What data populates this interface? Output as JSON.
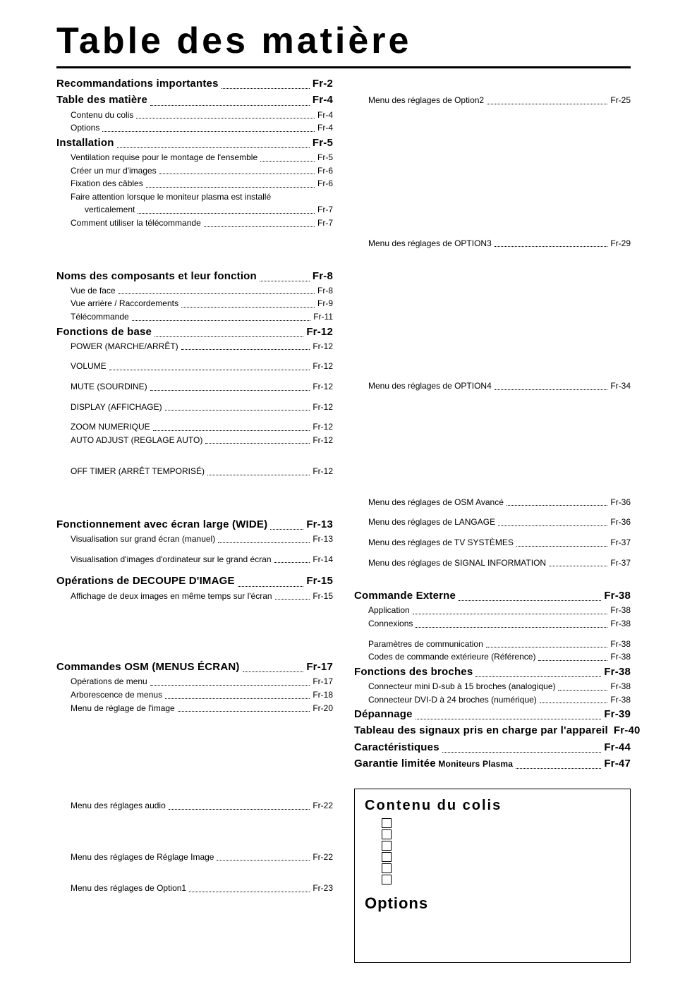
{
  "title": "Table des matière",
  "left": [
    {
      "t": "heading",
      "text": "Recommandations importantes",
      "page": "Fr-2"
    },
    {
      "t": "heading",
      "text": "Table des matière",
      "page": "Fr-4"
    },
    {
      "t": "sub",
      "indent": 1,
      "text": "Contenu du colis",
      "page": "Fr-4"
    },
    {
      "t": "sub",
      "indent": 1,
      "text": "Options",
      "page": "Fr-4"
    },
    {
      "t": "heading",
      "text": "Installation",
      "page": "Fr-5"
    },
    {
      "t": "sub",
      "indent": 1,
      "text": "Ventilation requise pour le montage de l'ensemble",
      "page": "Fr-5"
    },
    {
      "t": "sub",
      "indent": 1,
      "text": "Créer un mur d'images",
      "page": "Fr-6"
    },
    {
      "t": "sub",
      "indent": 1,
      "text": "Fixation des câbles",
      "page": "Fr-6"
    },
    {
      "t": "sub",
      "indent": 1,
      "text": "Faire attention lorsque le moniteur plasma est installé",
      "page": "",
      "wrap": true
    },
    {
      "t": "sub",
      "indent": 2,
      "text": "verticalement",
      "page": "Fr-7"
    },
    {
      "t": "sub",
      "indent": 1,
      "text": "Comment utiliser la télécommande",
      "page": "Fr-7"
    },
    {
      "t": "spacer",
      "size": "lg"
    },
    {
      "t": "heading",
      "text": "Noms des composants et leur fonction",
      "page": "Fr-8"
    },
    {
      "t": "sub",
      "indent": 1,
      "text": "Vue de face",
      "page": "Fr-8"
    },
    {
      "t": "sub",
      "indent": 1,
      "text": "Vue arrière / Raccordements",
      "page": "Fr-9"
    },
    {
      "t": "sub",
      "indent": 1,
      "text": "Télécommande",
      "page": "Fr-11"
    },
    {
      "t": "heading",
      "text": "Fonctions de base",
      "page": "Fr-12"
    },
    {
      "t": "sub",
      "indent": 1,
      "text": "POWER (MARCHE/ARRÊT)",
      "page": "Fr-12"
    },
    {
      "t": "spacer",
      "size": "sm"
    },
    {
      "t": "sub",
      "indent": 1,
      "text": "VOLUME",
      "page": "Fr-12"
    },
    {
      "t": "spacer",
      "size": "sm"
    },
    {
      "t": "sub",
      "indent": 1,
      "text": "MUTE (SOURDINE)",
      "page": "Fr-12"
    },
    {
      "t": "spacer",
      "size": "sm"
    },
    {
      "t": "sub",
      "indent": 1,
      "text": "DISPLAY (AFFICHAGE)",
      "page": "Fr-12"
    },
    {
      "t": "spacer",
      "size": "sm"
    },
    {
      "t": "sub",
      "indent": 1,
      "text": "ZOOM NUMERIQUE",
      "page": "Fr-12"
    },
    {
      "t": "sub",
      "indent": 1,
      "text": "AUTO ADJUST (REGLAGE AUTO)",
      "page": "Fr-12"
    },
    {
      "t": "spacer",
      "size": "md"
    },
    {
      "t": "sub",
      "indent": 1,
      "text": "OFF TIMER (ARRÊT TEMPORISÉ)",
      "page": "Fr-12"
    },
    {
      "t": "spacer",
      "size": "lg"
    },
    {
      "t": "heading",
      "text": "Fonctionnement avec écran large (WIDE)",
      "page": "Fr-13"
    },
    {
      "t": "sub",
      "indent": 1,
      "text": "Visualisation sur grand écran (manuel)",
      "page": "Fr-13"
    },
    {
      "t": "spacer",
      "size": "sm"
    },
    {
      "t": "sub",
      "indent": 1,
      "text": "Visualisation d'images d'ordinateur sur le grand écran",
      "page": "Fr-14"
    },
    {
      "t": "spacer",
      "size": "sm"
    },
    {
      "t": "heading",
      "text": "Opérations de DECOUPE D'IMAGE",
      "page": "Fr-15"
    },
    {
      "t": "sub",
      "indent": 1,
      "text": "Affichage de deux images en même temps sur l'écran",
      "page": "Fr-15"
    },
    {
      "t": "spacer",
      "size": "lg"
    },
    {
      "t": "spacer",
      "size": "md"
    },
    {
      "t": "heading",
      "text": "Commandes OSM (MENUS ÉCRAN)",
      "page": "Fr-17"
    },
    {
      "t": "sub",
      "indent": 1,
      "text": "Opérations de menu",
      "page": "Fr-17"
    },
    {
      "t": "sub",
      "indent": 1,
      "text": "Arborescence de menus",
      "page": "Fr-18"
    },
    {
      "t": "sub",
      "indent": 1,
      "text": "Menu de réglage de l'image",
      "page": "Fr-20"
    },
    {
      "t": "spacer",
      "size": "xl"
    },
    {
      "t": "sub",
      "indent": 1,
      "text": "Menu des réglages audio",
      "page": "Fr-22"
    },
    {
      "t": "spacer",
      "size": "lg"
    },
    {
      "t": "sub",
      "indent": 1,
      "text": "Menu des réglages de Réglage Image",
      "page": "Fr-22"
    },
    {
      "t": "spacer",
      "size": "md"
    },
    {
      "t": "sub",
      "indent": 1,
      "text": "Menu des réglages de Option1",
      "page": "Fr-23"
    }
  ],
  "right": [
    {
      "t": "spacer",
      "size": "md"
    },
    {
      "t": "sub",
      "indent": 1,
      "text": "Menu des réglages de Option2",
      "page": "Fr-25"
    },
    {
      "t": "spacer",
      "size": "xl"
    },
    {
      "t": "spacer",
      "size": "lg"
    },
    {
      "t": "spacer",
      "size": "sm"
    },
    {
      "t": "sub",
      "indent": 1,
      "text": "Menu des réglages de OPTION3",
      "page": "Fr-29"
    },
    {
      "t": "spacer",
      "size": "xl"
    },
    {
      "t": "spacer",
      "size": "lg"
    },
    {
      "t": "spacer",
      "size": "sm"
    },
    {
      "t": "sub",
      "indent": 1,
      "text": "Menu des réglages de OPTION4",
      "page": "Fr-34"
    },
    {
      "t": "spacer",
      "size": "xl"
    },
    {
      "t": "spacer",
      "size": "md"
    },
    {
      "t": "sub",
      "indent": 1,
      "text": "Menu des réglages de OSM Avancé",
      "page": "Fr-36"
    },
    {
      "t": "spacer",
      "size": "sm"
    },
    {
      "t": "sub",
      "indent": 1,
      "text": "Menu des réglages de LANGAGE",
      "page": "Fr-36"
    },
    {
      "t": "spacer",
      "size": "sm"
    },
    {
      "t": "sub",
      "indent": 1,
      "text": "Menu des réglages de TV SYSTÈMES",
      "page": "Fr-37"
    },
    {
      "t": "spacer",
      "size": "sm"
    },
    {
      "t": "sub",
      "indent": 1,
      "text": "Menu des réglages de  SIGNAL INFORMATION",
      "page": "Fr-37"
    },
    {
      "t": "spacer",
      "size": "md"
    },
    {
      "t": "heading",
      "text": "Commande Externe",
      "page": "Fr-38"
    },
    {
      "t": "sub",
      "indent": 1,
      "text": "Application",
      "page": "Fr-38"
    },
    {
      "t": "sub",
      "indent": 1,
      "text": "Connexions",
      "page": "Fr-38"
    },
    {
      "t": "spacer",
      "size": "sm"
    },
    {
      "t": "sub",
      "indent": 1,
      "text": "Paramètres de communication",
      "page": "Fr-38"
    },
    {
      "t": "sub",
      "indent": 1,
      "text": "Codes de commande extérieure (Référence)",
      "page": "Fr-38"
    },
    {
      "t": "heading",
      "text": "Fonctions des broches",
      "page": "Fr-38"
    },
    {
      "t": "sub",
      "indent": 1,
      "text": "Connecteur mini D-sub à 15 broches (analogique)",
      "page": "Fr-38"
    },
    {
      "t": "sub",
      "indent": 1,
      "text": "Connecteur DVI-D à 24 broches (numérique)",
      "page": "Fr-38"
    },
    {
      "t": "heading",
      "text": "Dépannage",
      "page": "Fr-39"
    },
    {
      "t": "heading",
      "text": "Tableau des signaux pris en charge par l'appareil",
      "page": "Fr-40"
    },
    {
      "t": "heading",
      "text": "Caractéristiques",
      "page": "Fr-44"
    },
    {
      "t": "heading_mixed",
      "bold": "Garantie limitée",
      "rest": "  Moniteurs Plasma",
      "page": "Fr-47"
    }
  ],
  "box": {
    "title1": "Contenu du colis",
    "checks": [
      "",
      "",
      "",
      "",
      "",
      ""
    ],
    "title2": "Options"
  }
}
